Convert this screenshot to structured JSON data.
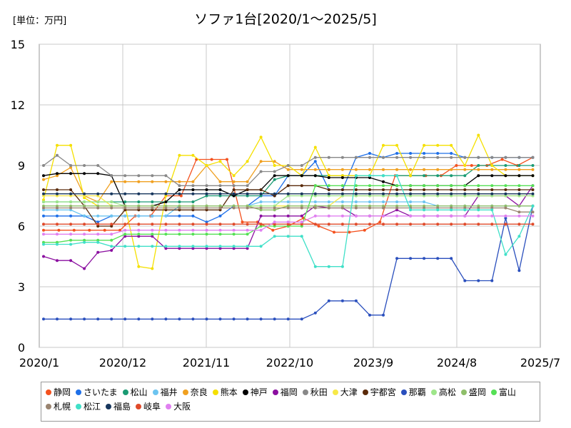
{
  "chart_data": {
    "type": "line",
    "title": "ソファ1台[2020/1～2025/5]",
    "unit_label": "[単位：万円]",
    "xlabel": "",
    "ylabel": "",
    "ylim": [
      0,
      15
    ],
    "y_ticks": [
      "0",
      "3",
      "6",
      "9",
      "12",
      "15"
    ],
    "x_ticks": [
      "2020/1",
      "2020/12",
      "2021/11",
      "2022/10",
      "2023/9",
      "2024/8",
      "2025/7"
    ],
    "grid": true,
    "legend_position": "bottom",
    "series": [
      {
        "name": "静岡",
        "color": "#f4511e",
        "values": [
          5.8,
          5.8,
          5.8,
          5.8,
          5.8,
          5.8,
          6.5,
          6.5,
          7.5,
          7.5,
          9.3,
          9.3,
          9.3,
          6.2,
          6.2,
          5.8,
          6.0,
          6.4,
          6.0,
          5.7,
          5.7,
          5.8,
          6.2,
          8.5,
          8.5,
          8.5,
          8.5,
          9.0,
          9.0,
          9.0,
          9.3,
          9.0,
          9.4
        ]
      },
      {
        "name": "さいたま",
        "color": "#1e6fe8",
        "values": [
          6.5,
          6.5,
          6.5,
          6.5,
          6.2,
          6.5,
          6.5,
          6.5,
          6.5,
          6.5,
          6.5,
          6.5,
          6.2,
          6.5,
          7.0,
          7.0,
          7.5,
          7.5,
          8.5,
          8.5,
          9.2,
          7.8,
          7.8,
          9.4,
          9.6,
          9.4,
          9.6,
          9.6,
          9.6,
          9.6,
          9.6,
          9.4,
          9.4,
          9.4,
          9.4,
          9.4,
          9.4
        ]
      },
      {
        "name": "松山",
        "color": "#1a9b73",
        "values": [
          7.2,
          7.2,
          7.2,
          7.2,
          7.2,
          7.2,
          7.2,
          7.2,
          7.2,
          7.2,
          7.2,
          7.2,
          7.5,
          7.5,
          7.5,
          7.5,
          7.5,
          8.3,
          8.5,
          8.5,
          8.5,
          8.5,
          8.5,
          8.5,
          8.5,
          8.5,
          8.5,
          8.5,
          8.5,
          8.5,
          8.5,
          8.5,
          9.0,
          9.0,
          9.0,
          9.0,
          9.0
        ]
      },
      {
        "name": "福井",
        "color": "#6cc4f0",
        "values": [
          6.8,
          6.8,
          6.8,
          6.5,
          6.5,
          6.5,
          6.5,
          6.5,
          6.5,
          6.5,
          7.0,
          7.0,
          7.0,
          7.0,
          7.0,
          7.0,
          7.2,
          7.2,
          7.2,
          7.2,
          7.2,
          7.2,
          7.2,
          7.2,
          7.2,
          7.2,
          7.2,
          7.2,
          7.2,
          7.0,
          7.0,
          7.0,
          7.0,
          7.0,
          7.0,
          7.0,
          7.0
        ]
      },
      {
        "name": "奈良",
        "color": "#f0a020",
        "values": [
          8.3,
          8.5,
          8.9,
          7.5,
          7.2,
          8.2,
          8.2,
          8.2,
          8.2,
          8.2,
          8.2,
          8.2,
          9.0,
          8.2,
          8.2,
          8.2,
          9.2,
          9.2,
          8.8,
          8.8,
          8.8,
          8.8,
          8.8,
          8.8,
          8.8,
          8.8,
          8.8,
          8.8,
          8.8,
          8.8,
          8.8,
          8.8,
          8.8,
          8.8,
          8.8,
          8.8,
          8.8
        ]
      },
      {
        "name": "熊本",
        "color": "#f5e000",
        "values": [
          7.3,
          10.0,
          10.0,
          7.4,
          7.0,
          7.0,
          7.0,
          4.0,
          3.9,
          7.5,
          9.5,
          9.5,
          9.0,
          9.2,
          8.5,
          9.2,
          10.4,
          9.0,
          9.0,
          8.5,
          9.9,
          8.5,
          8.5,
          8.5,
          8.5,
          10.0,
          10.0,
          8.5,
          10.0,
          10.0,
          10.0,
          9.0,
          10.5,
          9.0,
          8.5,
          8.5,
          8.5
        ]
      },
      {
        "name": "神戸",
        "color": "#000000",
        "values": [
          8.5,
          8.6,
          8.6,
          8.6,
          8.6,
          8.5,
          7.0,
          7.0,
          7.0,
          7.2,
          7.8,
          7.8,
          7.8,
          7.8,
          7.5,
          7.8,
          7.8,
          8.5,
          8.5,
          8.5,
          8.5,
          8.4,
          8.4,
          8.4,
          8.4,
          8.2,
          8.0,
          8.0,
          8.0,
          8.0,
          8.0,
          8.0,
          8.5,
          8.5,
          8.5,
          8.5,
          8.5
        ]
      },
      {
        "name": "福岡",
        "color": "#8b0fa0",
        "values": [
          4.5,
          4.3,
          4.3,
          3.9,
          4.7,
          4.8,
          5.5,
          5.5,
          5.5,
          4.9,
          4.9,
          4.9,
          4.9,
          4.9,
          4.9,
          4.9,
          6.5,
          6.5,
          6.5,
          6.5,
          7.0,
          6.9,
          6.9,
          6.5,
          6.5,
          6.5,
          6.8,
          6.5,
          6.5,
          6.5,
          6.5,
          6.5,
          7.5,
          7.5,
          7.5,
          7.0,
          8.0
        ]
      },
      {
        "name": "秋田",
        "color": "#888888",
        "values": [
          9.0,
          9.5,
          9.0,
          9.0,
          9.0,
          8.5,
          8.5,
          8.5,
          8.5,
          8.5,
          8.0,
          8.0,
          8.0,
          8.0,
          8.0,
          8.0,
          8.7,
          8.7,
          9.0,
          9.0,
          9.4,
          9.4,
          9.4,
          9.4,
          9.4,
          9.4,
          9.4,
          9.4,
          9.4,
          9.4,
          9.4,
          9.4,
          9.4,
          9.4,
          9.4,
          9.4,
          9.4
        ]
      },
      {
        "name": "大津",
        "color": "#f7e948",
        "values": [
          7.5,
          7.5,
          7.5,
          7.5,
          7.5,
          7.0,
          7.0,
          7.0,
          7.0,
          7.0,
          7.0,
          7.0,
          7.0,
          7.0,
          7.0,
          7.0,
          7.0,
          7.0,
          7.0,
          7.0,
          7.0,
          7.0,
          7.5,
          7.5,
          7.5,
          7.5,
          7.5,
          7.5,
          7.5,
          7.5,
          7.5,
          7.5,
          7.5,
          7.5,
          7.5,
          7.5,
          7.5
        ]
      },
      {
        "name": "宇都宮",
        "color": "#5a2a0a",
        "values": [
          7.8,
          7.8,
          7.8,
          7.0,
          6.0,
          6.0,
          6.8,
          6.8,
          6.8,
          6.8,
          6.8,
          6.8,
          6.8,
          6.8,
          7.8,
          7.8,
          7.8,
          7.5,
          8.0,
          8.0,
          8.0,
          7.8,
          7.8,
          7.8,
          7.8,
          7.8,
          7.8,
          7.8,
          7.8,
          7.8,
          7.8,
          7.8,
          7.8,
          7.8,
          7.8,
          7.8,
          7.8
        ]
      },
      {
        "name": "那覇",
        "color": "#2a4fbd",
        "values": [
          1.4,
          1.4,
          1.4,
          1.4,
          1.4,
          1.4,
          1.4,
          1.4,
          1.4,
          1.4,
          1.4,
          1.4,
          1.4,
          1.4,
          1.4,
          1.4,
          1.4,
          1.4,
          1.4,
          1.4,
          1.7,
          2.3,
          2.3,
          2.3,
          1.6,
          1.6,
          4.4,
          4.4,
          4.4,
          4.4,
          4.4,
          3.3,
          3.3,
          3.3,
          6.4,
          3.8,
          7.0
        ]
      },
      {
        "name": "高松",
        "color": "#9ee68a",
        "values": [
          7.2,
          7.2,
          7.2,
          7.2,
          7.2,
          7.2,
          7.0,
          7.0,
          7.0,
          7.0,
          7.0,
          7.0,
          7.0,
          7.0,
          7.0,
          7.0,
          7.0,
          7.0,
          7.5,
          7.5,
          7.5,
          7.5,
          7.5,
          7.5,
          7.5,
          7.5,
          7.5,
          7.5,
          7.5,
          7.5,
          7.5,
          7.5,
          7.5,
          7.5,
          7.5,
          7.5,
          7.5
        ]
      },
      {
        "name": "盛岡",
        "color": "#8fbf6a",
        "values": [
          7.0,
          7.0,
          7.0,
          7.0,
          7.0,
          7.0,
          7.0,
          7.0,
          7.0,
          7.0,
          7.0,
          7.0,
          7.0,
          7.0,
          7.0,
          7.0,
          6.8,
          6.8,
          7.0,
          7.0,
          7.0,
          7.0,
          7.0,
          7.0,
          7.0,
          7.0,
          7.0,
          7.0,
          7.0,
          7.0,
          7.0,
          7.0,
          7.0,
          7.0,
          7.0,
          7.0,
          7.0
        ]
      },
      {
        "name": "富山",
        "color": "#55e055",
        "values": [
          5.2,
          5.2,
          5.3,
          5.3,
          5.3,
          5.3,
          5.6,
          5.6,
          5.6,
          5.6,
          5.6,
          5.6,
          5.6,
          5.6,
          5.6,
          5.6,
          6.0,
          6.0,
          6.0,
          6.0,
          8.0,
          8.0,
          8.0,
          8.0,
          8.0,
          8.0,
          8.0,
          8.0,
          8.0,
          8.0,
          8.0,
          8.0,
          8.0,
          8.0,
          8.0,
          8.0,
          8.0
        ]
      },
      {
        "name": "札幌",
        "color": "#9a8470",
        "values": [
          6.9,
          6.9,
          6.9,
          6.9,
          6.9,
          6.9,
          6.9,
          6.9,
          6.9,
          6.9,
          6.9,
          6.9,
          6.9,
          6.9,
          6.9,
          6.9,
          6.9,
          6.9,
          6.9,
          6.9,
          6.9,
          6.9,
          6.9,
          6.9,
          6.9,
          6.9,
          6.9,
          6.9,
          6.9,
          6.9,
          6.9,
          6.9,
          6.9,
          6.9,
          6.9,
          6.7,
          6.7
        ]
      },
      {
        "name": "松江",
        "color": "#40e0c8",
        "values": [
          5.1,
          5.1,
          5.1,
          5.2,
          5.2,
          5.0,
          5.0,
          5.0,
          5.0,
          5.0,
          5.0,
          5.0,
          5.0,
          5.0,
          5.0,
          5.0,
          5.0,
          5.5,
          5.5,
          5.5,
          4.0,
          4.0,
          4.0,
          8.5,
          8.5,
          8.5,
          8.5,
          6.8,
          6.8,
          6.8,
          6.8,
          6.8,
          6.8,
          6.8,
          4.6,
          5.5,
          7.0
        ]
      },
      {
        "name": "福島",
        "color": "#17365d",
        "values": [
          7.6,
          7.6,
          7.6,
          7.6,
          7.6,
          7.6,
          7.6,
          7.6,
          7.6,
          7.6,
          7.6,
          7.6,
          7.6,
          7.6,
          7.6,
          7.6,
          7.6,
          7.6,
          7.6,
          7.6,
          7.6,
          7.6,
          7.6,
          7.6,
          7.6,
          7.6,
          7.6,
          7.6,
          7.6,
          7.6,
          7.6,
          7.6,
          7.6,
          7.6,
          7.6,
          7.6,
          7.6
        ]
      },
      {
        "name": "岐阜",
        "color": "#e04a2a",
        "values": [
          6.1,
          6.1,
          6.1,
          6.1,
          6.1,
          6.1,
          6.1,
          6.1,
          6.1,
          6.1,
          6.1,
          6.1,
          6.1,
          6.1,
          6.1,
          6.1,
          6.1,
          6.1,
          6.1,
          6.1,
          6.1,
          6.1,
          6.1,
          6.1,
          6.1,
          6.1,
          6.1,
          6.1,
          6.1,
          6.1,
          6.1,
          6.1,
          6.1,
          6.1,
          6.1,
          6.1,
          6.1
        ]
      },
      {
        "name": "大阪",
        "color": "#e080f0",
        "values": [
          5.6,
          5.6,
          5.6,
          5.6,
          5.6,
          5.6,
          5.8,
          5.8,
          5.8,
          5.8,
          5.8,
          5.8,
          5.8,
          5.8,
          5.8,
          5.8,
          5.8,
          6.2,
          6.2,
          6.2,
          6.5,
          6.5,
          6.5,
          6.5,
          6.5,
          6.5,
          6.5,
          6.5,
          6.5,
          6.5,
          6.5,
          6.5,
          6.5,
          6.5,
          6.5,
          6.5,
          6.5
        ]
      }
    ]
  }
}
